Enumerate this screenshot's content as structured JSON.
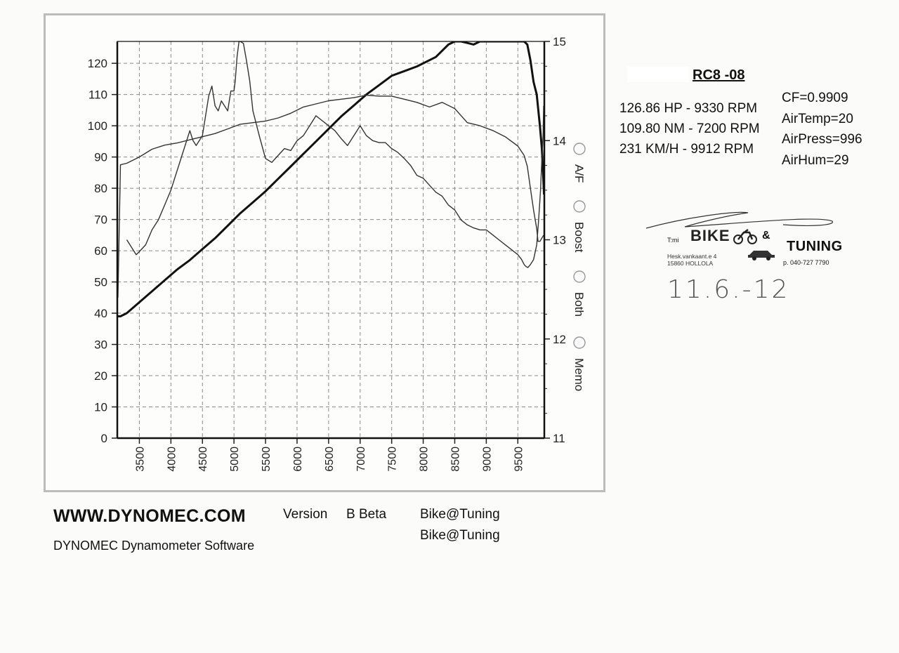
{
  "chart_data": {
    "type": "line",
    "x_ticks": [
      "3500",
      "4000",
      "4500",
      "5000",
      "5500",
      "6000",
      "6500",
      "7000",
      "7500",
      "8000",
      "8500",
      "9000",
      "9500"
    ],
    "y_left_ticks": [
      "0",
      "10",
      "20",
      "30",
      "40",
      "50",
      "60",
      "70",
      "80",
      "90",
      "100",
      "110",
      "120"
    ],
    "y_right_ticks": [
      "11",
      "12",
      "13",
      "14",
      "15"
    ],
    "xlim": [
      3150,
      9920
    ],
    "ylim_left": [
      0,
      127
    ],
    "ylim_right": [
      11,
      15
    ],
    "grid": true,
    "series": [
      {
        "axis": "left",
        "stroke": "#111111",
        "stroke_width": 3,
        "x": [
          3160,
          3200,
          3300,
          3500,
          3700,
          3900,
          4100,
          4300,
          4500,
          4700,
          4900,
          5100,
          5300,
          5500,
          5700,
          5900,
          6100,
          6300,
          6500,
          6700,
          6900,
          7100,
          7300,
          7500,
          7700,
          7900,
          8000,
          8100,
          8200,
          8300,
          8400,
          8500,
          8600,
          8700,
          8800,
          8900,
          9000,
          9100,
          9200,
          9300,
          9400,
          9500,
          9550,
          9600,
          9650,
          9700,
          9750,
          9800,
          9850,
          9880,
          9900,
          9915
        ],
        "values": [
          39,
          39,
          40,
          43.5,
          47,
          50.5,
          54,
          57,
          60.5,
          64,
          68,
          72,
          75.5,
          79,
          83,
          87,
          91,
          95,
          99,
          103,
          106.5,
          110,
          113,
          116,
          117.5,
          119,
          120,
          121,
          122,
          124,
          126,
          127,
          127,
          126.5,
          126,
          127,
          127,
          127,
          127,
          127,
          127,
          127,
          127,
          127,
          126,
          121,
          114,
          110,
          100,
          93,
          85,
          78
        ]
      },
      {
        "axis": "left",
        "stroke": "#333333",
        "stroke_width": 1.4,
        "x": [
          3160,
          3200,
          3300,
          3500,
          3700,
          3900,
          4100,
          4300,
          4500,
          4700,
          4900,
          5100,
          5300,
          5500,
          5700,
          5900,
          6100,
          6300,
          6500,
          6700,
          6900,
          7100,
          7300,
          7500,
          7700,
          7900,
          8100,
          8300,
          8500,
          8700,
          8900,
          9100,
          9300,
          9500,
          9600,
          9650,
          9700,
          9750,
          9800,
          9820,
          9850,
          9880,
          9910
        ],
        "values": [
          45,
          87.5,
          88,
          90,
          92.5,
          93.8,
          94.5,
          95.5,
          96.5,
          97.5,
          99,
          100.5,
          101,
          101.5,
          102.5,
          104,
          106,
          107,
          108,
          108.5,
          109,
          109.8,
          109.5,
          109.5,
          108.5,
          107.5,
          106,
          107.5,
          105.5,
          101,
          100,
          98.5,
          96.5,
          93.5,
          90.5,
          87,
          80,
          73,
          67,
          63,
          63,
          64,
          65
        ]
      },
      {
        "axis": "right",
        "stroke": "#333333",
        "stroke_width": 1.4,
        "x": [
          3300,
          3350,
          3450,
          3500,
          3600,
          3700,
          3800,
          3900,
          4000,
          4100,
          4200,
          4300,
          4350,
          4400,
          4500,
          4600,
          4650,
          4700,
          4750,
          4800,
          4850,
          4900,
          4950,
          5000,
          5020,
          5050,
          5080,
          5100,
          5150,
          5200,
          5250,
          5300,
          5400,
          5500,
          5600,
          5700,
          5800,
          5900,
          6000,
          6100,
          6200,
          6300,
          6400,
          6500,
          6600,
          6700,
          6800,
          6900,
          7000,
          7100,
          7200,
          7300,
          7400,
          7500,
          7600,
          7700,
          7800,
          7900,
          8000,
          8100,
          8200,
          8300,
          8400,
          8500,
          8600,
          8700,
          8800,
          8900,
          9000,
          9100,
          9200,
          9300,
          9400,
          9500,
          9560,
          9600,
          9630,
          9660,
          9700,
          9750,
          9800,
          9830,
          9860,
          9880,
          9900,
          9910
        ],
        "values": [
          13.0,
          12.95,
          12.85,
          12.88,
          12.95,
          13.1,
          13.2,
          13.35,
          13.5,
          13.7,
          13.9,
          14.1,
          14.0,
          13.95,
          14.05,
          14.45,
          14.55,
          14.35,
          14.3,
          14.4,
          14.35,
          14.3,
          14.5,
          14.5,
          14.6,
          14.85,
          15.0,
          15.0,
          14.98,
          14.8,
          14.6,
          14.3,
          14.05,
          13.82,
          13.78,
          13.85,
          13.92,
          13.9,
          14.0,
          14.05,
          14.15,
          14.25,
          14.2,
          14.15,
          14.1,
          14.02,
          13.95,
          14.05,
          14.15,
          14.05,
          14.0,
          13.98,
          13.98,
          13.92,
          13.88,
          13.82,
          13.75,
          13.65,
          13.62,
          13.55,
          13.48,
          13.44,
          13.35,
          13.3,
          13.2,
          13.15,
          13.12,
          13.1,
          13.1,
          13.05,
          13.0,
          12.95,
          12.9,
          12.85,
          12.8,
          12.75,
          12.73,
          12.72,
          12.75,
          12.8,
          12.95,
          13.2,
          13.5,
          13.8,
          14.05,
          14.35
        ]
      }
    ]
  },
  "side_options": [
    {
      "label": "A/F"
    },
    {
      "label": "Boost"
    },
    {
      "label": "Both"
    },
    {
      "label": "Memo"
    }
  ],
  "header": {
    "title": "RC8 -08"
  },
  "stats": {
    "hp": "126.86 HP - 9330 RPM",
    "nm": "109.80 NM - 7200 RPM",
    "kmh": "231 KM/H - 9912 RPM"
  },
  "conditions": {
    "cf": "CF=0.9909",
    "air_temp": "AirTemp=20",
    "air_press": "AirPress=996",
    "air_hum": "AirHum=29"
  },
  "stamp": {
    "owner_abbr": "T:mi",
    "word_bike": "BIKE",
    "amp": "&",
    "word_tuning": "TUNING",
    "address_line1": "Hesk.vankaant.e 4",
    "address_line2": "15860 HOLLOLA",
    "phone": "p. 040-727 7790"
  },
  "handwritten_date": "11.6.-12",
  "footer": {
    "website": "WWW.DYNOMEC.COM",
    "version_label": "Version",
    "version_value": "B Beta",
    "user_line1": "Bike@Tuning",
    "user_line2": "Bike@Tuning",
    "software_name": "DYNOMEC Dynamometer Software"
  }
}
